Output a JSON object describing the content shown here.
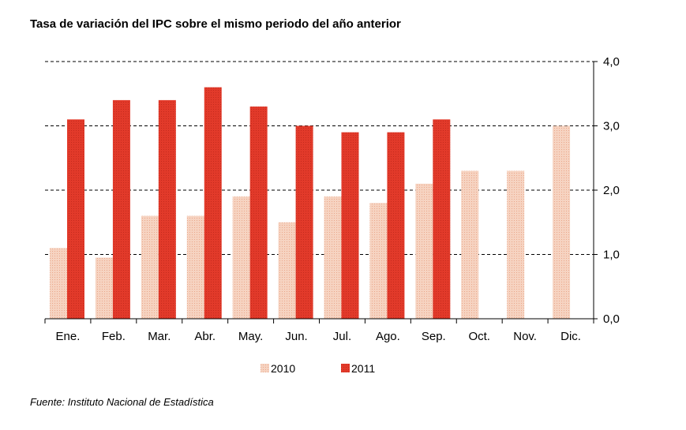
{
  "title": "Tasa de variación del IPC sobre el mismo periodo del año anterior",
  "source": "Fuente: Instituto Nacional de Estadística",
  "colors": {
    "2010": "#f2c1a8",
    "2011": "#e23a2a"
  },
  "chart_data": {
    "type": "bar",
    "title": "Tasa de variación del IPC sobre el mismo periodo del año anterior",
    "categories": [
      "Ene.",
      "Feb.",
      "Mar.",
      "Abr.",
      "May.",
      "Jun.",
      "Jul.",
      "Ago.",
      "Sep.",
      "Oct.",
      "Nov.",
      "Dic."
    ],
    "series": [
      {
        "name": "2010",
        "values": [
          1.1,
          0.95,
          1.6,
          1.6,
          1.9,
          1.5,
          1.9,
          1.8,
          2.1,
          2.3,
          2.3,
          3.0
        ]
      },
      {
        "name": "2011",
        "values": [
          3.1,
          3.4,
          3.4,
          3.6,
          3.3,
          3.0,
          2.9,
          2.9,
          3.1,
          null,
          null,
          null
        ]
      }
    ],
    "ylim": [
      0,
      4
    ],
    "yticks": [
      "0,0",
      "1,0",
      "2,0",
      "3,0",
      "4,0"
    ],
    "y_axis_position": "right",
    "grid": true,
    "legend_position": "bottom"
  }
}
